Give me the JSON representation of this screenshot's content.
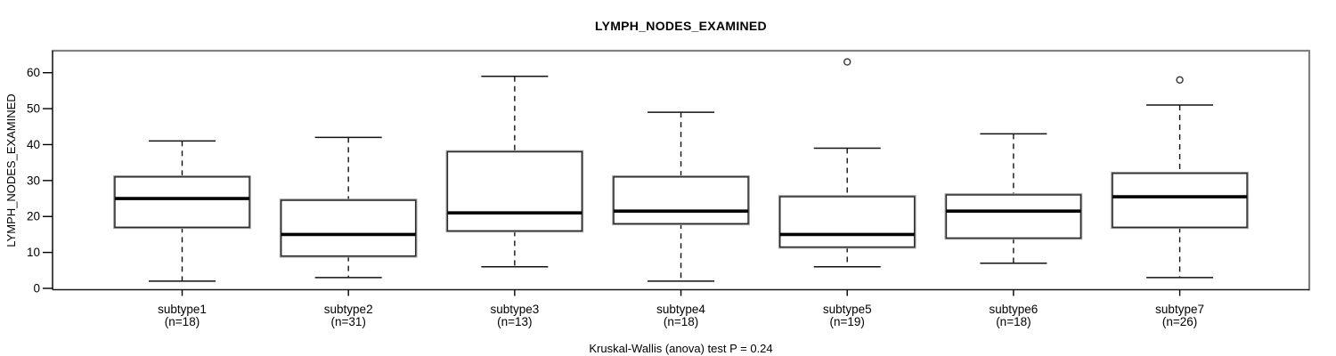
{
  "chart_data": {
    "type": "boxplot",
    "title": "LYMPH_NODES_EXAMINED",
    "xlabel": "",
    "ylabel": "LYMPH_NODES_EXAMINED",
    "footnote": "Kruskal-Wallis (anova) test P = 0.24",
    "ylim": [
      0,
      66
    ],
    "yticks": [
      0,
      10,
      20,
      30,
      40,
      50,
      60
    ],
    "grid": false,
    "legend": null,
    "groups": [
      {
        "label": "subtype1",
        "sublabel": "(n=18)",
        "n": 18,
        "whisker_low": 2,
        "q1": 17,
        "median": 25,
        "q3": 31,
        "whisker_high": 41,
        "outliers": []
      },
      {
        "label": "subtype2",
        "sublabel": "(n=31)",
        "n": 31,
        "whisker_low": 3,
        "q1": 9,
        "median": 15,
        "q3": 24.5,
        "whisker_high": 42,
        "outliers": []
      },
      {
        "label": "subtype3",
        "sublabel": "(n=13)",
        "n": 13,
        "whisker_low": 6,
        "q1": 16,
        "median": 21,
        "q3": 38,
        "whisker_high": 59,
        "outliers": []
      },
      {
        "label": "subtype4",
        "sublabel": "(n=18)",
        "n": 18,
        "whisker_low": 2,
        "q1": 18,
        "median": 21.5,
        "q3": 31,
        "whisker_high": 49,
        "outliers": []
      },
      {
        "label": "subtype5",
        "sublabel": "(n=19)",
        "n": 19,
        "whisker_low": 6,
        "q1": 11.5,
        "median": 15,
        "q3": 25.5,
        "whisker_high": 39,
        "outliers": [
          63
        ]
      },
      {
        "label": "subtype6",
        "sublabel": "(n=18)",
        "n": 18,
        "whisker_low": 7,
        "q1": 14,
        "median": 21.5,
        "q3": 26,
        "whisker_high": 43,
        "outliers": []
      },
      {
        "label": "subtype7",
        "sublabel": "(n=26)",
        "n": 26,
        "whisker_low": 3,
        "q1": 17,
        "median": 25.5,
        "q3": 32,
        "whisker_high": 51,
        "outliers": [
          58
        ]
      }
    ],
    "colors": {
      "line": "#000000",
      "box_fill": "#ffffff",
      "frame_shadow": "#808080",
      "background": "#ffffff"
    }
  }
}
